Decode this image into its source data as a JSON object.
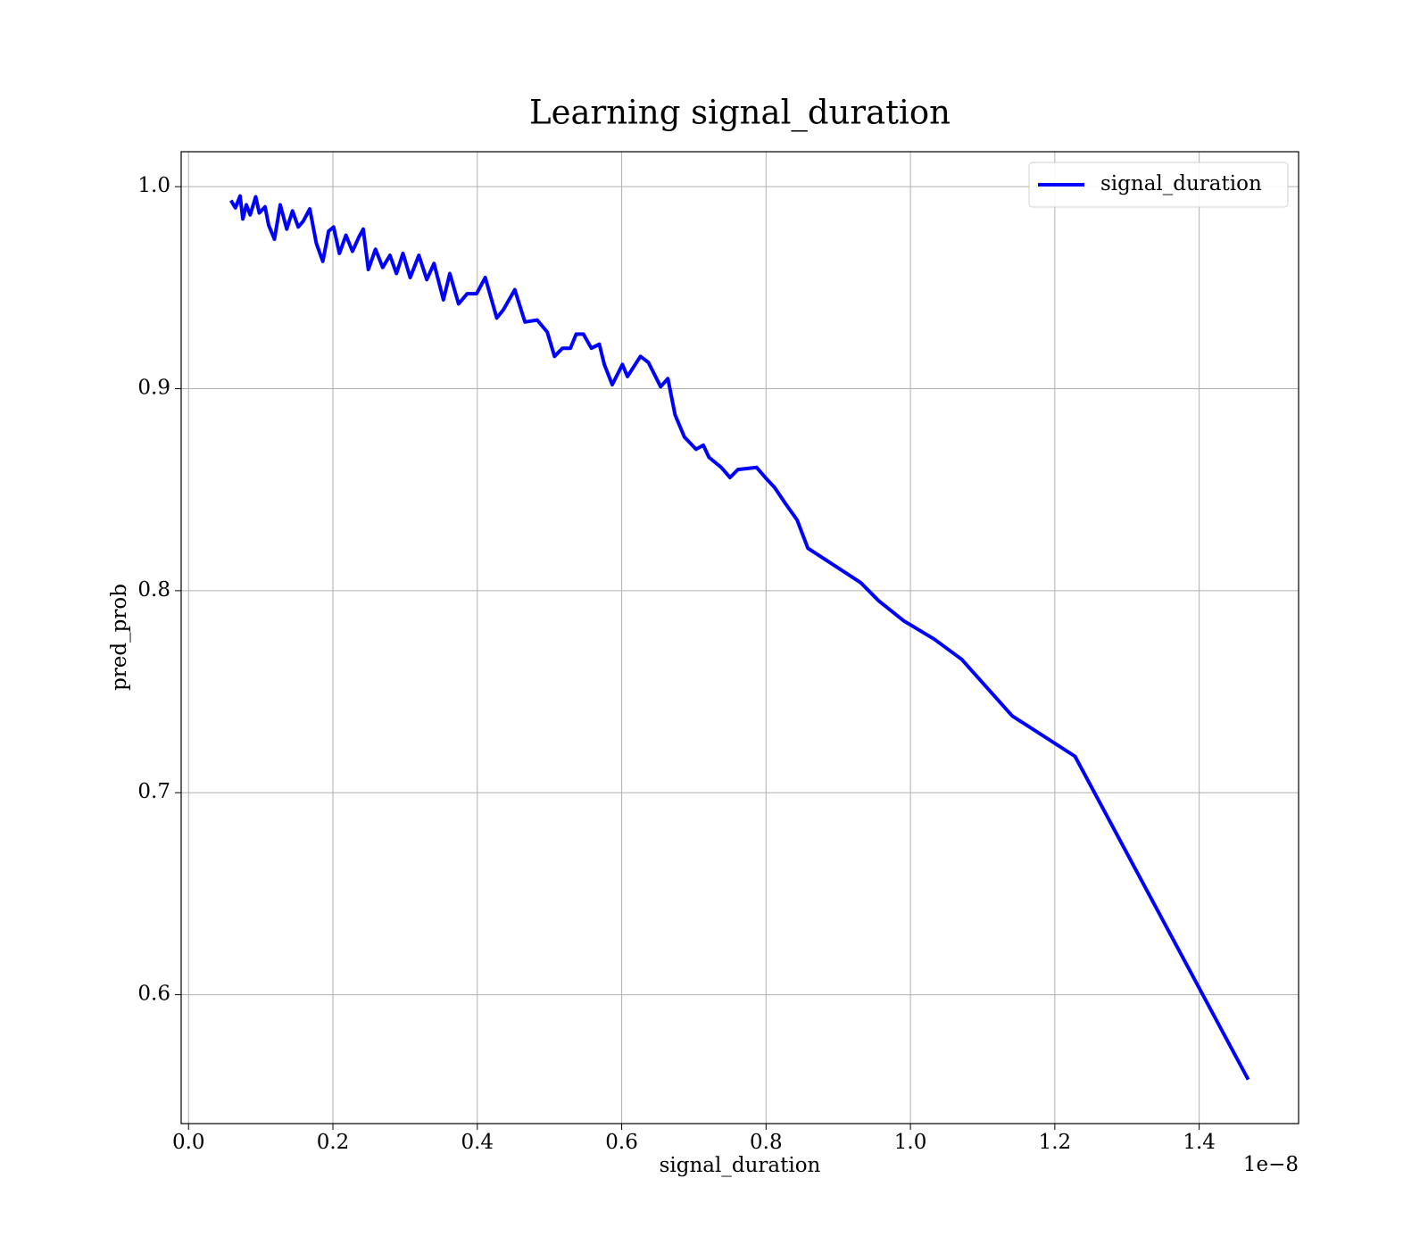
{
  "chart_data": {
    "type": "line",
    "title": "Learning signal_duration",
    "x_label": "signal_duration",
    "y_label": "pred_prob",
    "x_offset_label": "1e−8",
    "xlim": [
      -0.0102,
      1.5377
    ],
    "ylim": [
      0.5362,
      1.0173
    ],
    "xticks": [
      {
        "value": 0,
        "label": "0.0"
      },
      0.2,
      0.4,
      0.6,
      0.8,
      {
        "value": 1,
        "label": "1.0"
      },
      1.2,
      1.4
    ],
    "yticks": [
      0.6,
      0.7,
      0.8,
      0.9,
      {
        "value": 1,
        "label": "1.0"
      }
    ],
    "grid": true,
    "legend": "upper right",
    "x": [
      0.0587,
      0.065,
      0.0714,
      0.0752,
      0.08,
      0.0854,
      0.093,
      0.098,
      0.106,
      0.111,
      0.119,
      0.127,
      0.136,
      0.144,
      0.152,
      0.159,
      0.168,
      0.177,
      0.186,
      0.194,
      0.201,
      0.209,
      0.218,
      0.227,
      0.236,
      0.242,
      0.249,
      0.259,
      0.269,
      0.279,
      0.288,
      0.297,
      0.307,
      0.319,
      0.33,
      0.34,
      0.353,
      0.362,
      0.374,
      0.386,
      0.399,
      0.411,
      0.427,
      0.436,
      0.452,
      0.466,
      0.483,
      0.497,
      0.507,
      0.518,
      0.529,
      0.537,
      0.547,
      0.558,
      0.569,
      0.576,
      0.587,
      0.601,
      0.608,
      0.626,
      0.637,
      0.654,
      0.664,
      0.674,
      0.687,
      0.703,
      0.713,
      0.721,
      0.738,
      0.75,
      0.761,
      0.787,
      0.799,
      0.812,
      0.827,
      0.843,
      0.858,
      0.931,
      0.956,
      0.991,
      1.033,
      1.071,
      1.141,
      1.228,
      1.468
    ],
    "series": [
      {
        "name": "signal_duration",
        "color": "#0000ff",
        "values": [
          0.9932,
          0.9895,
          0.9954,
          0.984,
          0.991,
          0.986,
          0.995,
          0.987,
          0.99,
          0.981,
          0.974,
          0.991,
          0.979,
          0.988,
          0.98,
          0.983,
          0.989,
          0.972,
          0.963,
          0.978,
          0.98,
          0.967,
          0.976,
          0.968,
          0.975,
          0.979,
          0.959,
          0.969,
          0.96,
          0.966,
          0.957,
          0.967,
          0.955,
          0.966,
          0.954,
          0.962,
          0.944,
          0.957,
          0.942,
          0.947,
          0.947,
          0.955,
          0.935,
          0.939,
          0.949,
          0.933,
          0.934,
          0.928,
          0.916,
          0.92,
          0.92,
          0.927,
          0.927,
          0.92,
          0.922,
          0.912,
          0.902,
          0.912,
          0.906,
          0.916,
          0.913,
          0.901,
          0.905,
          0.887,
          0.876,
          0.87,
          0.872,
          0.866,
          0.861,
          0.856,
          0.86,
          0.861,
          0.856,
          0.851,
          0.843,
          0.835,
          0.821,
          0.804,
          0.795,
          0.785,
          0.776,
          0.766,
          0.738,
          0.718,
          0.558
        ]
      }
    ]
  }
}
